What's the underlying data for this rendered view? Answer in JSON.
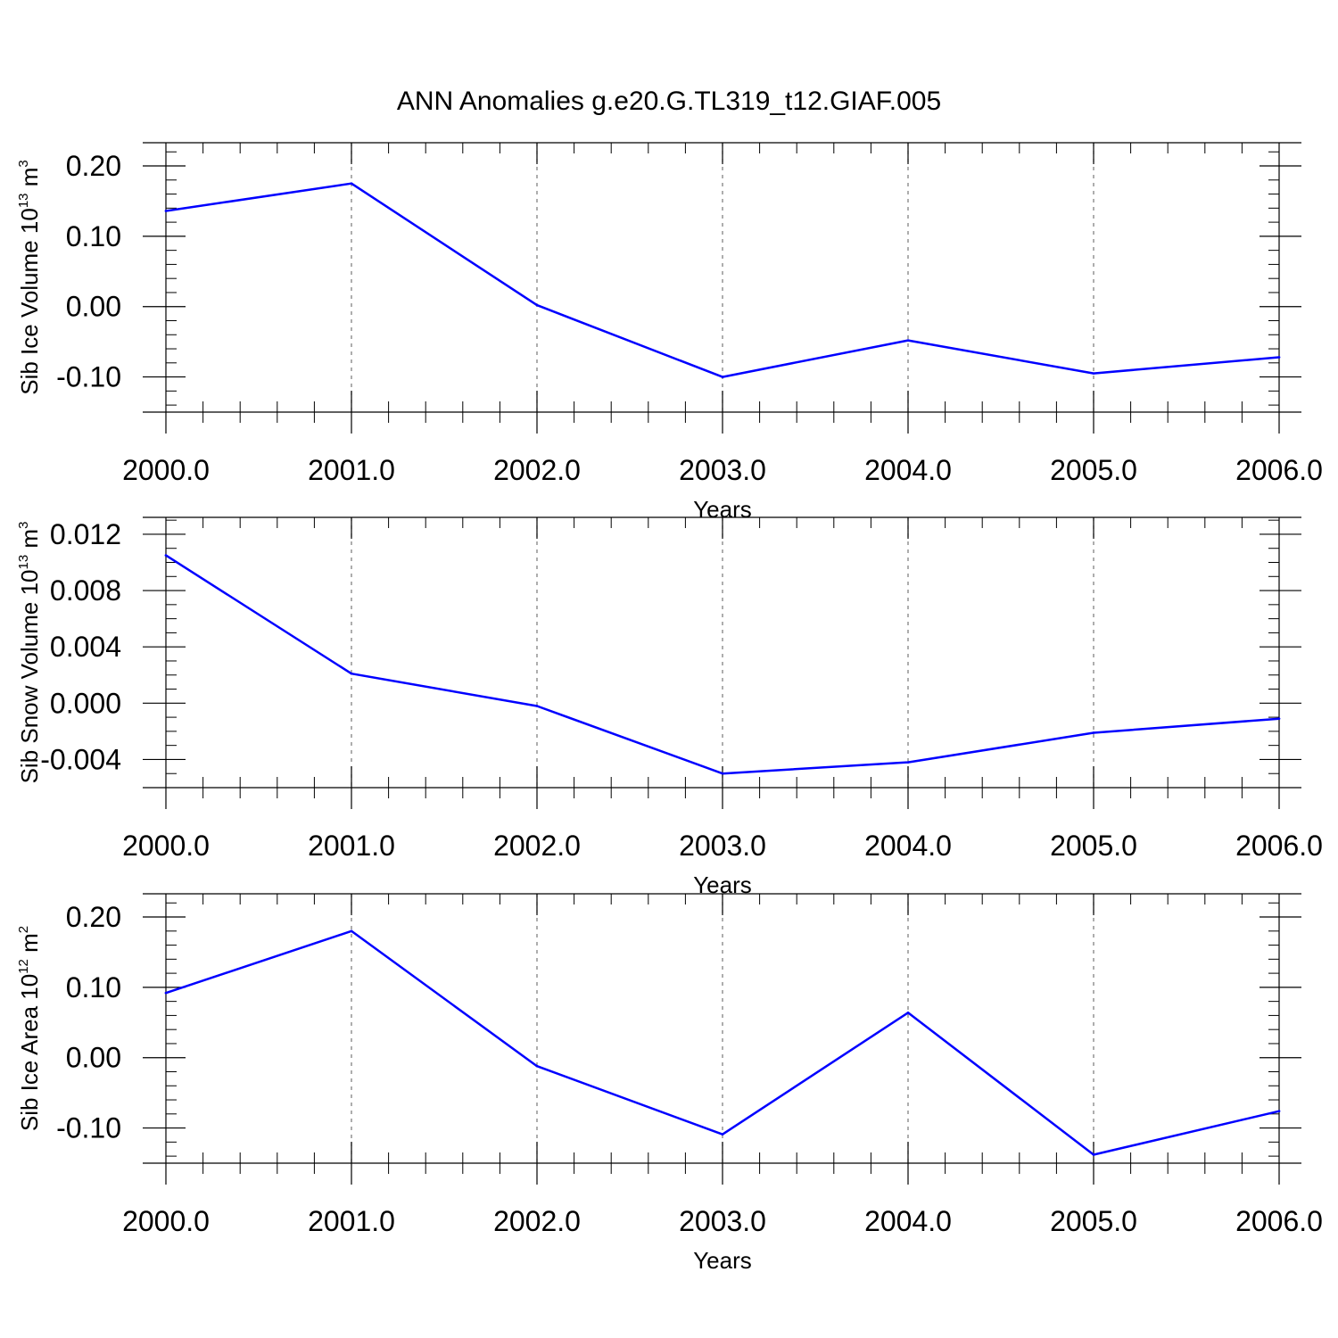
{
  "title": "ANN Anomalies g.e20.G.TL319_t12.GIAF.005",
  "colors": {
    "series": "#0000ff",
    "grid": "#777777",
    "axis": "#000000"
  },
  "chart_data": [
    {
      "type": "line",
      "title": "ANN Anomalies g.e20.G.TL319_t12.GIAF.005",
      "ylabel": {
        "text": "Sib Ice Volume 10",
        "exp": "13",
        "unit": " m",
        "unit_exp": "3"
      },
      "xlabel": "Years",
      "x": [
        2000,
        2001,
        2002,
        2003,
        2004,
        2005,
        2006
      ],
      "x_tick_labels": [
        "2000.0",
        "2001.0",
        "2002.0",
        "2003.0",
        "2004.0",
        "2005.0",
        "2006.0"
      ],
      "y_ticks": [
        0.2,
        0.1,
        0.0,
        -0.1
      ],
      "y_tick_labels": [
        "0.20",
        "0.10",
        "0.00",
        "-0.10"
      ],
      "y_minor_step": 0.02,
      "xlim": [
        2000,
        2006
      ],
      "ylim": [
        -0.15,
        0.233
      ],
      "grid": "x-dashed",
      "series": [
        {
          "values": [
            0.136,
            0.175,
            0.002,
            -0.1,
            -0.048,
            -0.095,
            -0.072
          ]
        }
      ]
    },
    {
      "type": "line",
      "ylabel": {
        "text": "Sib Snow Volume 10",
        "exp": "13",
        "unit": " m",
        "unit_exp": "3"
      },
      "xlabel": "Years",
      "x": [
        2000,
        2001,
        2002,
        2003,
        2004,
        2005,
        2006
      ],
      "x_tick_labels": [
        "2000.0",
        "2001.0",
        "2002.0",
        "2003.0",
        "2004.0",
        "2005.0",
        "2006.0"
      ],
      "y_ticks": [
        0.012,
        0.008,
        0.004,
        0.0,
        -0.004
      ],
      "y_tick_labels": [
        "0.012",
        "0.008",
        "0.004",
        "0.000",
        "-0.004"
      ],
      "y_minor_step": 0.001,
      "xlim": [
        2000,
        2006
      ],
      "ylim": [
        -0.006,
        0.0132
      ],
      "grid": "x-dashed",
      "series": [
        {
          "values": [
            0.0105,
            0.0021,
            -0.0002,
            -0.005,
            -0.0042,
            -0.0021,
            -0.0011
          ]
        }
      ]
    },
    {
      "type": "line",
      "ylabel": {
        "text": "Sib Ice Area 10",
        "exp": "12",
        "unit": " m",
        "unit_exp": "2"
      },
      "xlabel": "Years",
      "x": [
        2000,
        2001,
        2002,
        2003,
        2004,
        2005,
        2006
      ],
      "x_tick_labels": [
        "2000.0",
        "2001.0",
        "2002.0",
        "2003.0",
        "2004.0",
        "2005.0",
        "2006.0"
      ],
      "y_ticks": [
        0.2,
        0.1,
        0.0,
        -0.1
      ],
      "y_tick_labels": [
        "0.20",
        "0.10",
        "0.00",
        "-0.10"
      ],
      "y_minor_step": 0.02,
      "xlim": [
        2000,
        2006
      ],
      "ylim": [
        -0.15,
        0.233
      ],
      "grid": "x-dashed",
      "series": [
        {
          "values": [
            0.092,
            0.18,
            -0.012,
            -0.109,
            0.064,
            -0.138,
            -0.076
          ]
        }
      ]
    }
  ]
}
